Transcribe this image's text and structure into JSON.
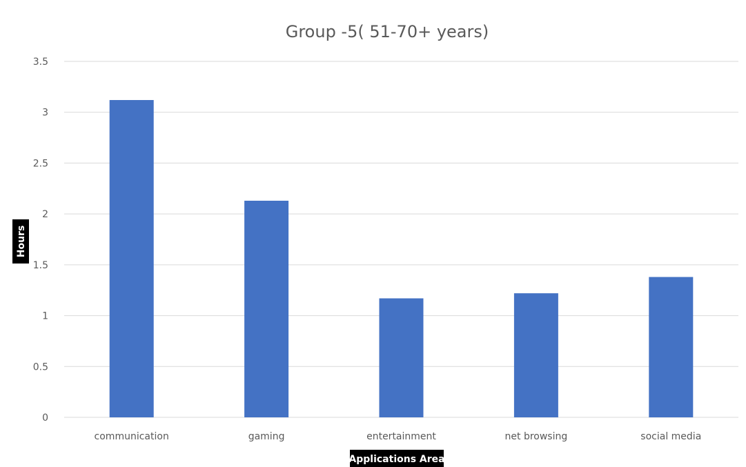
{
  "chart_data": {
    "type": "bar",
    "title": "Group -5( 51-70+ years)",
    "xlabel": "Applications Area",
    "ylabel": "Hours",
    "categories": [
      "communication",
      "gaming",
      "entertainment",
      "net browsing",
      "social media"
    ],
    "values": [
      3.12,
      2.13,
      1.17,
      1.22,
      1.38
    ],
    "ylim": [
      0,
      3.5
    ],
    "yticks": [
      "0",
      "0.5",
      "1",
      "1.5",
      "2",
      "2.5",
      "3",
      "3.5"
    ],
    "grid": true,
    "bar_color": "#4472C4",
    "grid_color": "#D9D9D9",
    "label_bg_color": "#000000"
  }
}
